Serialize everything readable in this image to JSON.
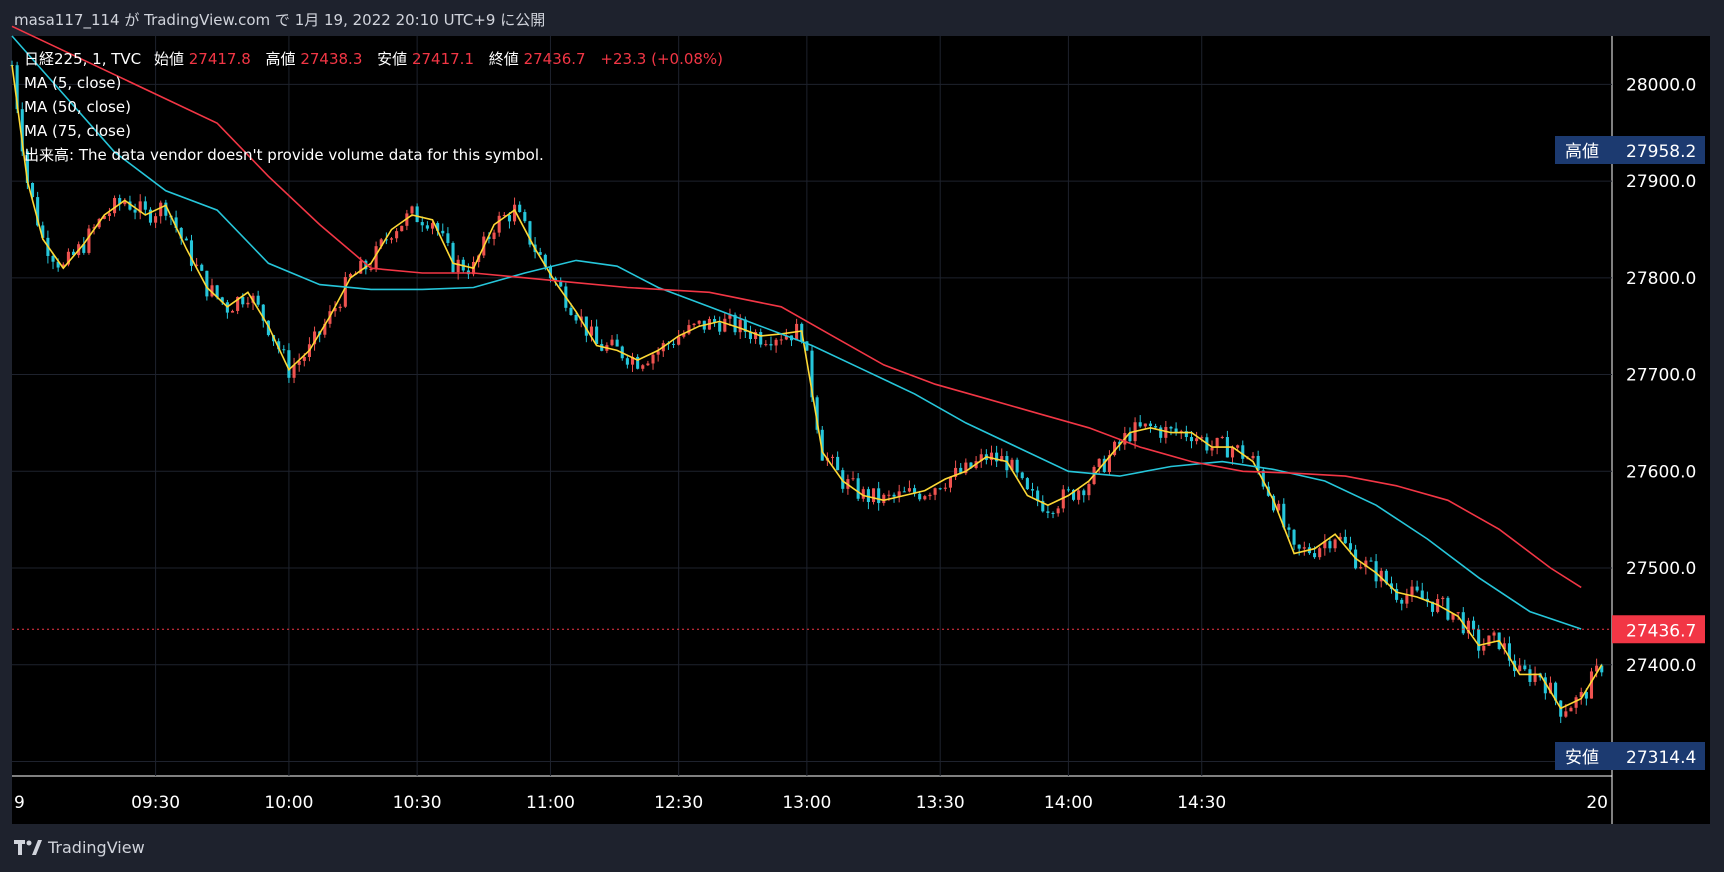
{
  "header": {
    "published_text": "masa117_114 が TradingView.com で 1月 19, 2022 20:10 UTC+9 に公開"
  },
  "legend": {
    "symbol": "日経225, 1, TVC",
    "open_label": "始値",
    "open_value": "27417.8",
    "high_label": "高値",
    "high_value": "27438.3",
    "low_label": "安値",
    "low_value": "27417.1",
    "close_label": "終値",
    "close_value": "27436.7",
    "change": "+23.3 (+0.08%)",
    "ma5": "MA (5, close)",
    "ma50": "MA (50, close)",
    "ma75": "MA (75, close)",
    "volume": "出来高: The data vendor doesn't provide volume data for this symbol."
  },
  "price_badges": {
    "high_label": "高値",
    "high_value": "27958.2",
    "low_label": "安値",
    "low_value": "27314.4",
    "last_value": "27436.7"
  },
  "footer": {
    "brand": "TradingView",
    "logo_icon": "tradingview-logo-icon"
  },
  "colors": {
    "background": "#000000",
    "frame": "#1e222d",
    "up": "#f23645",
    "down": "#22ab94",
    "up_bar": "#ef5350",
    "down_bar": "#26c6da",
    "ma5": "#fdd835",
    "ma50": "#26c6da",
    "ma75": "#f23645",
    "badge": "#1c3a70",
    "last_badge": "#f23645"
  },
  "chart_data": {
    "type": "candlestick",
    "y_ticks": [
      "28000.0",
      "27900.0",
      "27800.0",
      "27700.0",
      "27600.0",
      "27500.0",
      "27400.0",
      "27300.0"
    ],
    "x_ticks": [
      "9",
      "09:30",
      "10:00",
      "10:30",
      "11:00",
      "12:30",
      "13:00",
      "13:30",
      "14:00",
      "14:30",
      "20"
    ],
    "ylim": [
      27285,
      28050
    ],
    "series": [
      {
        "name": "MA (5, close)",
        "color": "#fdd835",
        "points": [
          [
            0,
            28020
          ],
          [
            3,
            27900
          ],
          [
            6,
            27840
          ],
          [
            10,
            27810
          ],
          [
            14,
            27835
          ],
          [
            18,
            27865
          ],
          [
            22,
            27880
          ],
          [
            26,
            27865
          ],
          [
            30,
            27875
          ],
          [
            34,
            27830
          ],
          [
            38,
            27790
          ],
          [
            42,
            27770
          ],
          [
            46,
            27785
          ],
          [
            50,
            27750
          ],
          [
            54,
            27705
          ],
          [
            58,
            27725
          ],
          [
            62,
            27760
          ],
          [
            66,
            27800
          ],
          [
            70,
            27815
          ],
          [
            74,
            27850
          ],
          [
            78,
            27865
          ],
          [
            82,
            27860
          ],
          [
            86,
            27815
          ],
          [
            90,
            27810
          ],
          [
            94,
            27855
          ],
          [
            98,
            27870
          ],
          [
            102,
            27830
          ],
          [
            106,
            27795
          ],
          [
            110,
            27765
          ],
          [
            114,
            27730
          ],
          [
            118,
            27725
          ],
          [
            122,
            27715
          ],
          [
            126,
            27725
          ],
          [
            130,
            27740
          ],
          [
            134,
            27750
          ],
          [
            138,
            27755
          ],
          [
            142,
            27748
          ],
          [
            146,
            27740
          ],
          [
            150,
            27742
          ],
          [
            154,
            27745
          ],
          [
            158,
            27620
          ],
          [
            162,
            27590
          ],
          [
            166,
            27575
          ],
          [
            170,
            27570
          ],
          [
            174,
            27575
          ],
          [
            178,
            27580
          ],
          [
            182,
            27592
          ],
          [
            186,
            27600
          ],
          [
            190,
            27615
          ],
          [
            194,
            27610
          ],
          [
            198,
            27575
          ],
          [
            202,
            27565
          ],
          [
            206,
            27575
          ],
          [
            210,
            27590
          ],
          [
            214,
            27615
          ],
          [
            218,
            27640
          ],
          [
            222,
            27645
          ],
          [
            226,
            27640
          ],
          [
            230,
            27640
          ],
          [
            234,
            27625
          ],
          [
            238,
            27625
          ],
          [
            242,
            27610
          ],
          [
            246,
            27570
          ],
          [
            250,
            27515
          ],
          [
            254,
            27520
          ],
          [
            258,
            27535
          ],
          [
            262,
            27510
          ],
          [
            266,
            27495
          ],
          [
            270,
            27475
          ],
          [
            274,
            27470
          ],
          [
            278,
            27462
          ],
          [
            282,
            27450
          ],
          [
            286,
            27420
          ],
          [
            290,
            27425
          ],
          [
            294,
            27390
          ],
          [
            298,
            27390
          ],
          [
            302,
            27355
          ],
          [
            306,
            27365
          ],
          [
            310,
            27400
          ]
        ]
      },
      {
        "name": "MA (50, close)",
        "color": "#26c6da",
        "points": [
          [
            0,
            28050
          ],
          [
            10,
            27990
          ],
          [
            20,
            27930
          ],
          [
            30,
            27890
          ],
          [
            40,
            27870
          ],
          [
            50,
            27815
          ],
          [
            60,
            27793
          ],
          [
            70,
            27788
          ],
          [
            80,
            27788
          ],
          [
            90,
            27790
          ],
          [
            100,
            27805
          ],
          [
            110,
            27818
          ],
          [
            118,
            27812
          ],
          [
            126,
            27790
          ],
          [
            136,
            27770
          ],
          [
            146,
            27750
          ],
          [
            156,
            27730
          ],
          [
            166,
            27705
          ],
          [
            176,
            27680
          ],
          [
            186,
            27650
          ],
          [
            196,
            27625
          ],
          [
            206,
            27600
          ],
          [
            216,
            27595
          ],
          [
            226,
            27605
          ],
          [
            236,
            27610
          ],
          [
            246,
            27602
          ],
          [
            256,
            27590
          ],
          [
            266,
            27565
          ],
          [
            276,
            27530
          ],
          [
            286,
            27490
          ],
          [
            296,
            27455
          ],
          [
            306,
            27437
          ]
        ]
      },
      {
        "name": "MA (75, close)",
        "color": "#f23645",
        "points": [
          [
            0,
            28060
          ],
          [
            20,
            28010
          ],
          [
            40,
            27960
          ],
          [
            50,
            27905
          ],
          [
            60,
            27855
          ],
          [
            70,
            27810
          ],
          [
            80,
            27805
          ],
          [
            90,
            27805
          ],
          [
            100,
            27800
          ],
          [
            110,
            27795
          ],
          [
            120,
            27790
          ],
          [
            136,
            27785
          ],
          [
            150,
            27770
          ],
          [
            160,
            27740
          ],
          [
            170,
            27710
          ],
          [
            180,
            27690
          ],
          [
            190,
            27675
          ],
          [
            200,
            27660
          ],
          [
            210,
            27645
          ],
          [
            220,
            27625
          ],
          [
            230,
            27610
          ],
          [
            240,
            27600
          ],
          [
            250,
            27598
          ],
          [
            260,
            27595
          ],
          [
            270,
            27585
          ],
          [
            280,
            27570
          ],
          [
            290,
            27540
          ],
          [
            300,
            27500
          ],
          [
            306,
            27480
          ]
        ]
      }
    ]
  }
}
